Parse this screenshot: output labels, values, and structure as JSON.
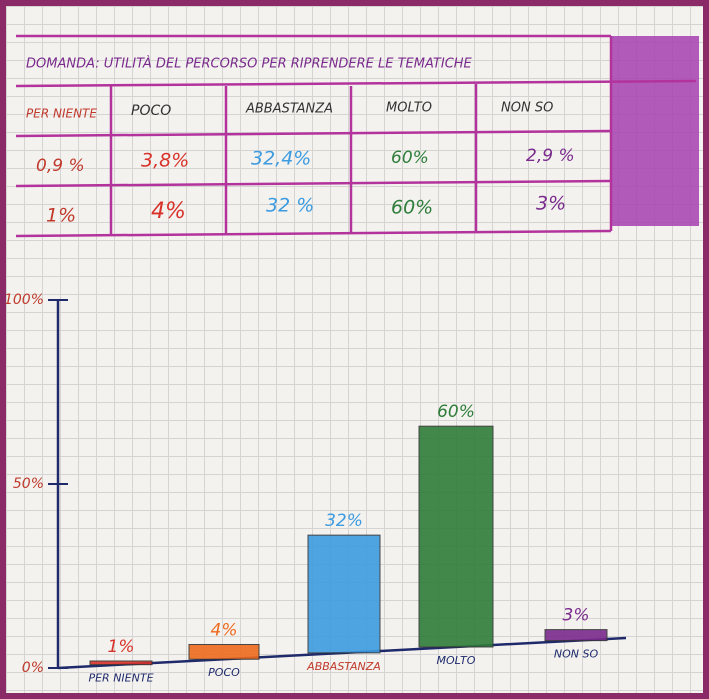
{
  "header": {
    "title": "DOMANDA: UTILITÀ DEL PERCORSO PER RIPRENDERE LE TEMATICHE"
  },
  "table": {
    "columns": [
      "PER NIENTE",
      "POCO",
      "ABBASTANZA",
      "MOLTO",
      "NON SO"
    ],
    "rows": [
      [
        "0,9 %",
        "3,8%",
        "32,4%",
        "60%",
        "2,9 %"
      ],
      [
        "1%",
        "4%",
        "32 %",
        "60%",
        "3%"
      ]
    ]
  },
  "chart_data": {
    "type": "bar",
    "categories": [
      "PER NIENTE",
      "POCO",
      "ABBASTANZA",
      "MOLTO",
      "NON SO"
    ],
    "values": [
      1,
      4,
      32,
      60,
      3
    ],
    "value_labels": [
      "1%",
      "4%",
      "32%",
      "60%",
      "3%"
    ],
    "colors": [
      "#d8322a",
      "#ee6a1e",
      "#3d9be0",
      "#2f7d3a",
      "#7a2a8c"
    ],
    "ylim": [
      0,
      100
    ],
    "yticks": [
      {
        "value": 0,
        "label": "0%"
      },
      {
        "value": 50,
        "label": "50%"
      },
      {
        "value": 100,
        "label": "100%"
      }
    ]
  }
}
